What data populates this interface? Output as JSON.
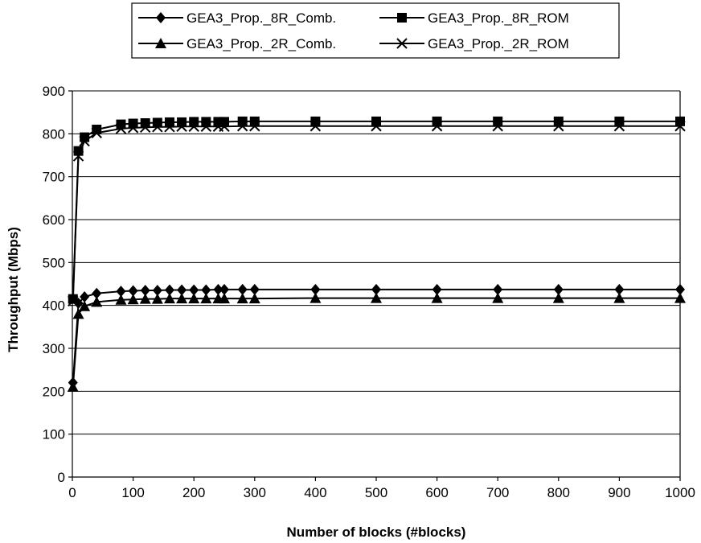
{
  "chart_data": {
    "type": "line",
    "xlabel": "Number of blocks (#blocks)",
    "ylabel": "Throughput (Mbps)",
    "xlim": [
      0,
      1000
    ],
    "ylim": [
      0,
      900
    ],
    "x_ticks": [
      0,
      100,
      200,
      300,
      400,
      500,
      600,
      700,
      800,
      900,
      1000
    ],
    "y_ticks": [
      0,
      100,
      200,
      300,
      400,
      500,
      600,
      700,
      800,
      900
    ],
    "grid": "horizontal",
    "legend_position": "top-center",
    "x": [
      1,
      10,
      20,
      40,
      80,
      100,
      120,
      140,
      160,
      180,
      200,
      220,
      240,
      250,
      280,
      300,
      400,
      500,
      600,
      700,
      800,
      900,
      1000
    ],
    "series": [
      {
        "name": "GEA3_Prop._8R_Comb.",
        "marker": "diamond",
        "values": [
          220,
          405,
          420,
          428,
          433,
          434,
          435,
          435,
          436,
          436,
          436,
          436,
          437,
          437,
          437,
          437,
          437,
          437,
          437,
          437,
          437,
          437,
          437
        ]
      },
      {
        "name": "GEA3_Prop._8R_ROM",
        "marker": "square",
        "values": [
          415,
          760,
          792,
          810,
          822,
          824,
          825,
          826,
          827,
          827,
          828,
          828,
          828,
          828,
          829,
          829,
          829,
          829,
          829,
          829,
          829,
          829,
          829
        ]
      },
      {
        "name": "GEA3_Prop._2R_Comb.",
        "marker": "triangle",
        "values": [
          210,
          380,
          398,
          408,
          413,
          414,
          415,
          415,
          416,
          416,
          416,
          416,
          416,
          416,
          416,
          416,
          417,
          417,
          417,
          417,
          417,
          417,
          417
        ]
      },
      {
        "name": "GEA3_Prop._2R_ROM",
        "marker": "x",
        "values": [
          410,
          748,
          783,
          802,
          812,
          814,
          815,
          816,
          816,
          817,
          817,
          817,
          817,
          817,
          818,
          818,
          818,
          818,
          818,
          818,
          818,
          818,
          818
        ]
      }
    ]
  }
}
